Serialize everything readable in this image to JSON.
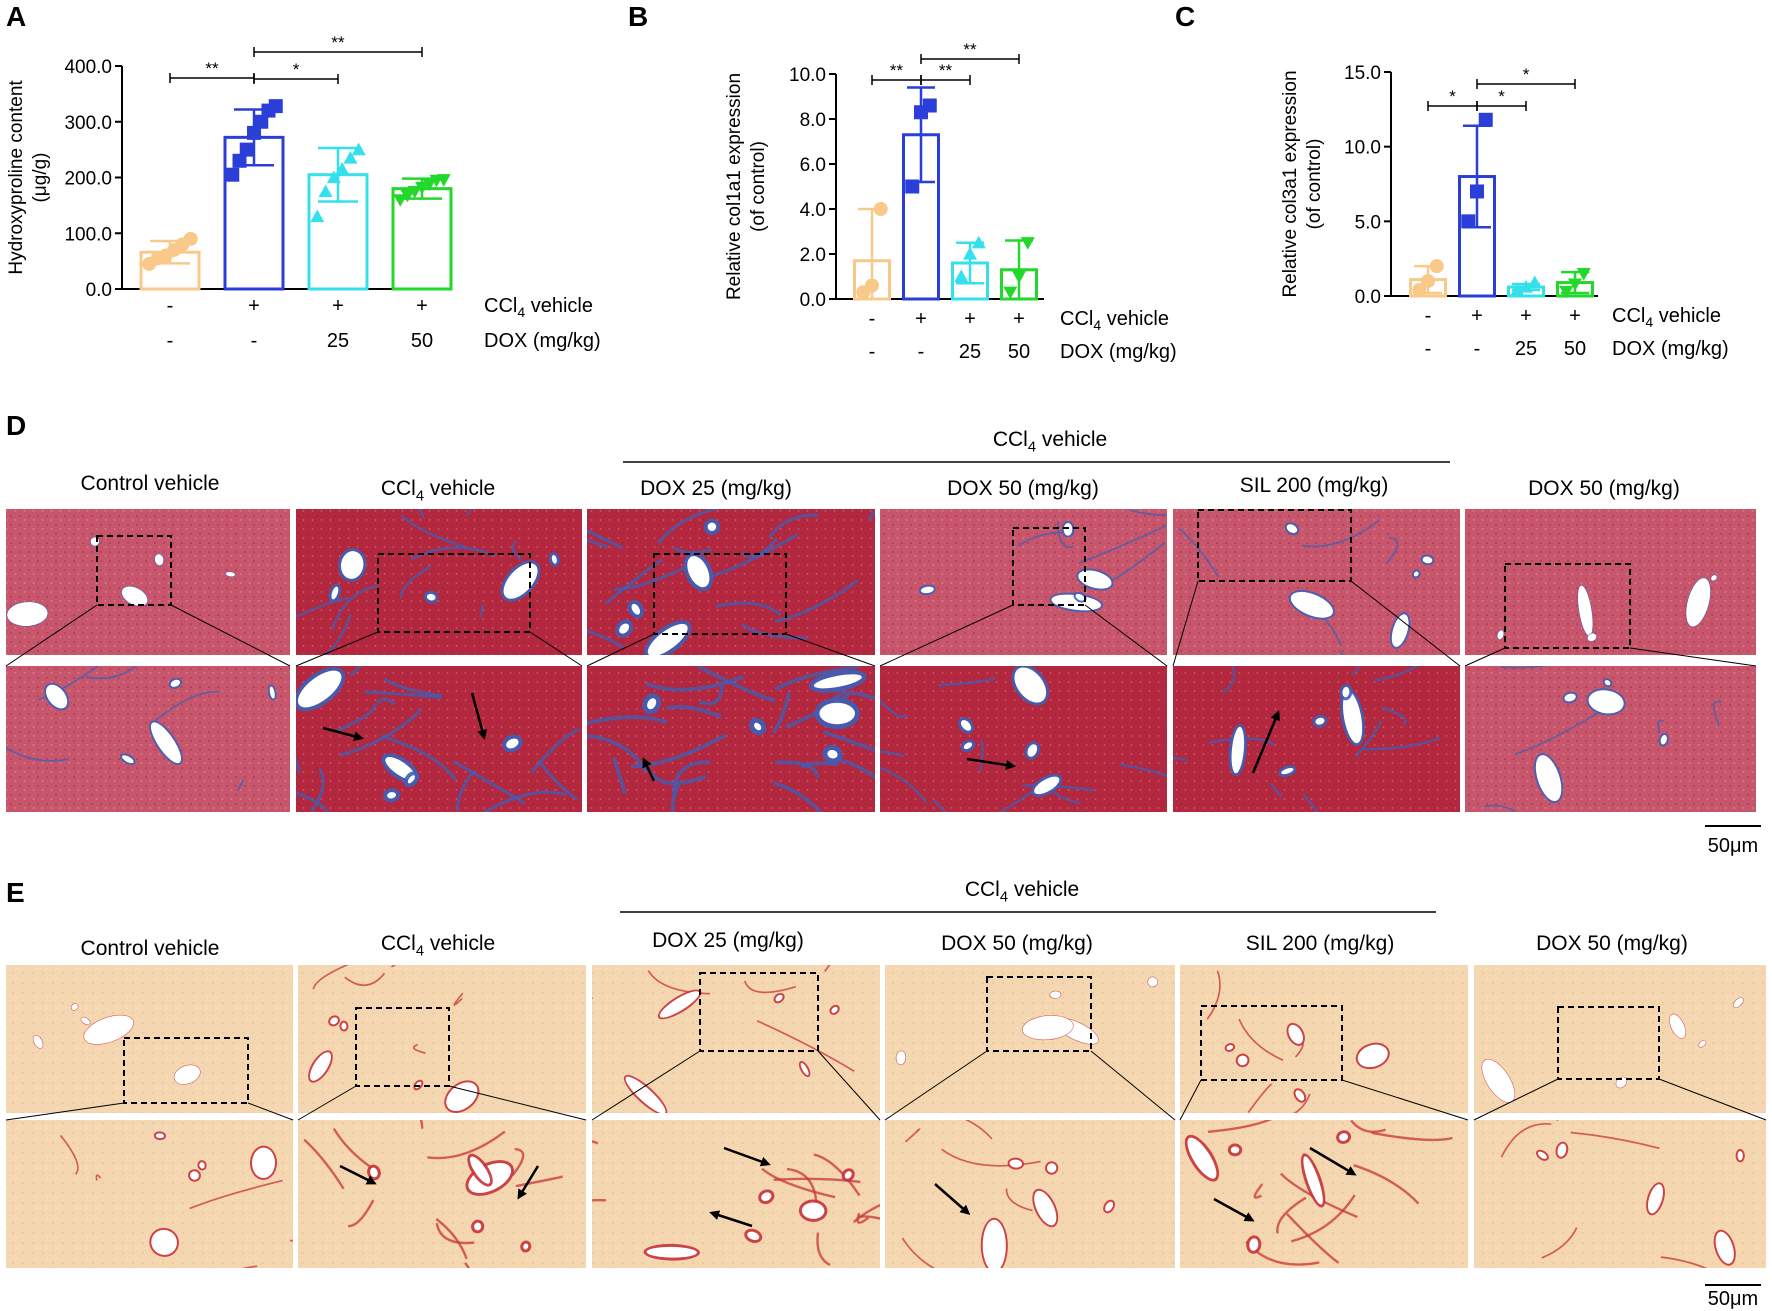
{
  "colors": {
    "control": "#f9c98a",
    "ccl4": "#2b3fd8",
    "dox25": "#33e0ec",
    "dox50": "#22d82a",
    "arrow": "#000000",
    "trichrome_bg": "#c7566c",
    "trichrome_dark": "#b3283f",
    "trichrome_fiber": "#3d5fb8",
    "sirius_bg": "#f4d6b0",
    "sirius_fiber": "#c8333b"
  },
  "panel_letters": [
    "A",
    "B",
    "C",
    "D",
    "E"
  ],
  "chart_data": [
    {
      "type": "bar",
      "panel": "A",
      "ylabel": "Hydroxyproline content\n(μg/g)",
      "yticks": [
        "0.0",
        "100.0",
        "200.0",
        "300.0",
        "400.0"
      ],
      "ylim": [
        0,
        400
      ],
      "categories": [
        "Control vehicle",
        "CCl4 vehicle",
        "DOX 25",
        "DOX 50"
      ],
      "values": [
        66,
        272,
        205,
        180
      ],
      "errors": [
        20,
        50,
        48,
        18
      ],
      "points": [
        [
          45,
          55,
          60,
          70,
          80,
          90
        ],
        [
          205,
          230,
          250,
          280,
          300,
          320,
          328
        ],
        [
          130,
          175,
          200,
          215,
          235,
          250
        ],
        [
          160,
          168,
          175,
          182,
          188,
          195,
          196
        ]
      ],
      "significance": [
        {
          "from": 0,
          "to": 1,
          "label": "**"
        },
        {
          "from": 1,
          "to": 2,
          "label": "*"
        },
        {
          "from": 1,
          "to": 3,
          "label": "**"
        }
      ],
      "row1": {
        "signs": [
          "-",
          "+",
          "+",
          "+"
        ],
        "label": "CCl4 vehicle"
      },
      "row2": {
        "signs": [
          "-",
          "-",
          "25",
          "50"
        ],
        "label": "DOX  (mg/kg)"
      }
    },
    {
      "type": "bar",
      "panel": "B",
      "ylabel": "Relative col1a1 expression\n(of control)",
      "yticks": [
        "0.0",
        "2.0",
        "4.0",
        "6.0",
        "8.0",
        "10.0"
      ],
      "ylim": [
        0,
        10
      ],
      "categories": [
        "Control vehicle",
        "CCl4 vehicle",
        "DOX 25",
        "DOX 50"
      ],
      "values": [
        1.7,
        7.3,
        1.6,
        1.3
      ],
      "errors": [
        2.3,
        2.1,
        0.9,
        1.3
      ],
      "points": [
        [
          0.3,
          0.6,
          4.0
        ],
        [
          5.0,
          8.3,
          8.6
        ],
        [
          1.0,
          2.0,
          2.5
        ],
        [
          0.3,
          1.0,
          2.5
        ]
      ],
      "significance": [
        {
          "from": 0,
          "to": 1,
          "label": "**"
        },
        {
          "from": 1,
          "to": 2,
          "label": "**"
        },
        {
          "from": 1,
          "to": 3,
          "label": "**"
        }
      ],
      "row1": {
        "signs": [
          "-",
          "+",
          "+",
          "+"
        ],
        "label": "CCl4 vehicle"
      },
      "row2": {
        "signs": [
          "-",
          "-",
          "25",
          "50"
        ],
        "label": "DOX  (mg/kg)"
      }
    },
    {
      "type": "bar",
      "panel": "C",
      "ylabel": "Relative col3a1 expression\n(of control)",
      "yticks": [
        "0.0",
        "5.0",
        "10.0",
        "15.0"
      ],
      "ylim": [
        0,
        15
      ],
      "categories": [
        "Control vehicle",
        "CCl4 vehicle",
        "DOX 25",
        "DOX 50"
      ],
      "values": [
        1.1,
        8.0,
        0.6,
        0.9
      ],
      "errors": [
        0.9,
        3.4,
        0.2,
        0.7
      ],
      "points": [
        [
          0.4,
          1.0,
          2.0
        ],
        [
          5.0,
          7.0,
          11.8
        ],
        [
          0.4,
          0.6,
          0.9
        ],
        [
          0.3,
          0.8,
          1.5
        ]
      ],
      "significance": [
        {
          "from": 0,
          "to": 1,
          "label": "*"
        },
        {
          "from": 1,
          "to": 2,
          "label": "*"
        },
        {
          "from": 1,
          "to": 3,
          "label": "*"
        }
      ],
      "row1": {
        "signs": [
          "-",
          "+",
          "+",
          "+"
        ],
        "label": "CCl4 vehicle"
      },
      "row2": {
        "signs": [
          "-",
          "-",
          "25",
          "50"
        ],
        "label": "DOX  (mg/kg)"
      }
    }
  ],
  "histology_D": {
    "group_label": "CCl4 vehicle",
    "columns": [
      "Control vehicle",
      "CCl4 vehicle",
      "DOX 25 (mg/kg)",
      "DOX 50 (mg/kg)",
      "SIL 200 (mg/kg)",
      "DOX 50 (mg/kg)"
    ],
    "scale_bar": "50μm"
  },
  "histology_E": {
    "group_label": "CCl4 vehicle",
    "columns": [
      "Control vehicle",
      "CCl4 vehicle",
      "DOX 25 (mg/kg)",
      "DOX 50 (mg/kg)",
      "SIL 200 (mg/kg)",
      "DOX 50 (mg/kg)"
    ],
    "scale_bar": "50μm"
  }
}
